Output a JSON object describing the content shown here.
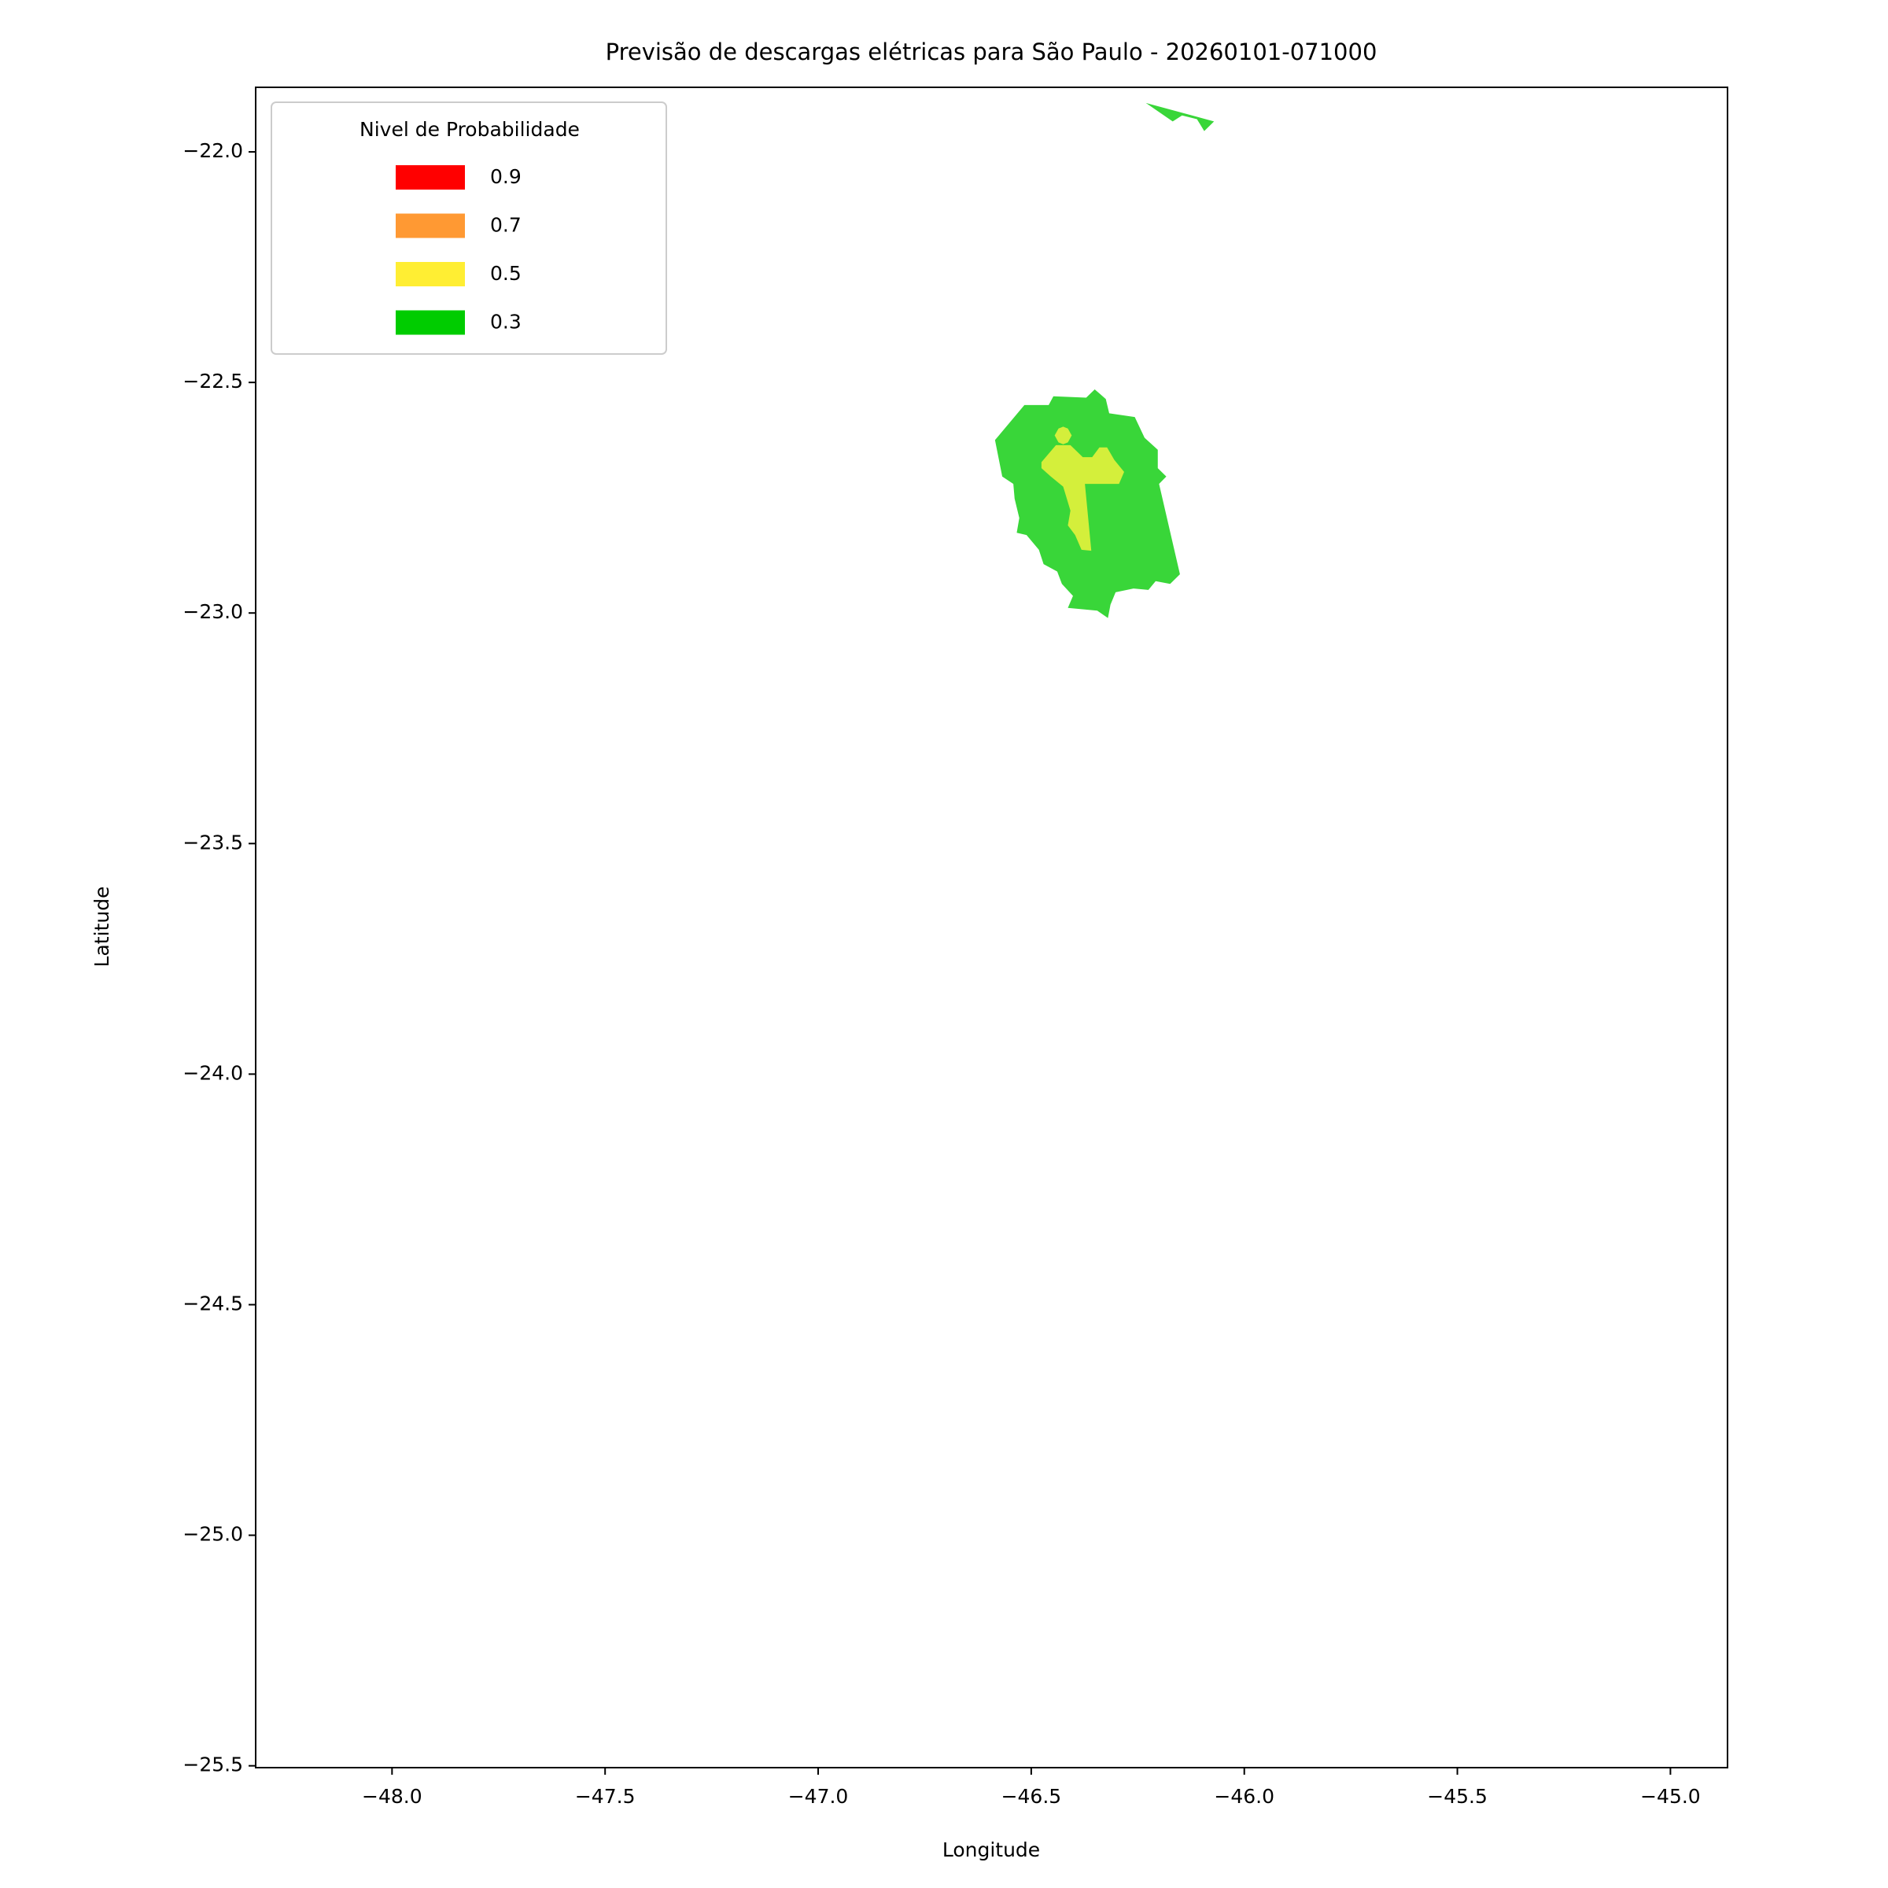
{
  "chart_data": {
    "type": "map",
    "title": "Previsão de descargas elétricas para São Paulo - 20260101-071000",
    "xlabel": "Longitude",
    "ylabel": "Latitude",
    "xlim": [
      -48.32,
      -44.866
    ],
    "ylim": [
      -25.504,
      -21.86
    ],
    "xticks": [
      {
        "value": -48.0,
        "label": "−48.0"
      },
      {
        "value": -47.5,
        "label": "−47.5"
      },
      {
        "value": -47.0,
        "label": "−47.0"
      },
      {
        "value": -46.5,
        "label": "−46.5"
      },
      {
        "value": -46.0,
        "label": "−46.0"
      },
      {
        "value": -45.5,
        "label": "−45.5"
      },
      {
        "value": -45.0,
        "label": "−45.0"
      }
    ],
    "yticks": [
      {
        "value": -22.0,
        "label": "−22.0"
      },
      {
        "value": -22.5,
        "label": "−22.5"
      },
      {
        "value": -23.0,
        "label": "−23.0"
      },
      {
        "value": -23.5,
        "label": "−23.5"
      },
      {
        "value": -24.0,
        "label": "−24.0"
      },
      {
        "value": -24.5,
        "label": "−24.5"
      },
      {
        "value": -25.0,
        "label": "−25.0"
      },
      {
        "value": -25.5,
        "label": "−25.5"
      }
    ],
    "legend": {
      "title": "Nivel de Probabilidade",
      "position": "upper left",
      "entries": [
        {
          "label": 0.9,
          "color": "#ff0000"
        },
        {
          "label": 0.7,
          "color": "#ff9933"
        },
        {
          "label": 0.5,
          "color": "#ffee33"
        },
        {
          "label": 0.3,
          "color": "#00cc00"
        }
      ]
    },
    "regions": [
      {
        "color": "#39d639",
        "lon": [
          -46.585,
          -46.516,
          -46.459,
          -46.448,
          -46.371,
          -46.351,
          -46.325,
          -46.317,
          -46.257,
          -46.234,
          -46.203,
          -46.203,
          -46.183,
          -46.2,
          -46.151,
          -46.174,
          -46.208,
          -46.225,
          -46.26,
          -46.302,
          -46.314,
          -46.32,
          -46.345,
          -46.414,
          -46.402,
          -46.428,
          -46.439,
          -46.471,
          -46.482,
          -46.511,
          -46.534,
          -46.528,
          -46.539,
          -46.542,
          -46.568
        ],
        "lat": [
          -22.625,
          -22.549,
          -22.549,
          -22.53,
          -22.533,
          -22.515,
          -22.536,
          -22.567,
          -22.575,
          -22.62,
          -22.646,
          -22.686,
          -22.704,
          -22.72,
          -22.916,
          -22.937,
          -22.931,
          -22.95,
          -22.947,
          -22.955,
          -22.982,
          -23.011,
          -22.995,
          -22.989,
          -22.963,
          -22.937,
          -22.91,
          -22.894,
          -22.863,
          -22.831,
          -22.826,
          -22.794,
          -22.752,
          -22.72,
          -22.704
        ]
      },
      {
        "color": "#39d639",
        "lon": [
          -46.231,
          -46.071,
          -46.094,
          -46.111,
          -46.146,
          -46.168
        ],
        "lat": [
          -21.894,
          -21.934,
          -21.955,
          -21.929,
          -21.921,
          -21.934
        ]
      },
      {
        "color": "#d4ef3b",
        "lon": [
          -46.476,
          -46.442,
          -46.408,
          -46.379,
          -46.357,
          -46.34,
          -46.322,
          -46.305,
          -46.282,
          -46.294,
          -46.374,
          -46.359,
          -46.382,
          -46.397,
          -46.414,
          -46.408,
          -46.425,
          -46.454,
          -46.476
        ],
        "lat": [
          -22.673,
          -22.636,
          -22.636,
          -22.662,
          -22.662,
          -22.641,
          -22.641,
          -22.668,
          -22.694,
          -22.72,
          -22.72,
          -22.865,
          -22.863,
          -22.831,
          -22.81,
          -22.778,
          -22.726,
          -22.704,
          -22.686
        ]
      },
      {
        "color": "#d4ef3b",
        "lon": [
          -46.445,
          -46.436,
          -46.425,
          -46.414,
          -46.405,
          -46.414,
          -46.425,
          -46.436
        ],
        "lat": [
          -22.615,
          -22.6,
          -22.596,
          -22.6,
          -22.615,
          -22.63,
          -22.634,
          -22.63
        ]
      }
    ]
  }
}
